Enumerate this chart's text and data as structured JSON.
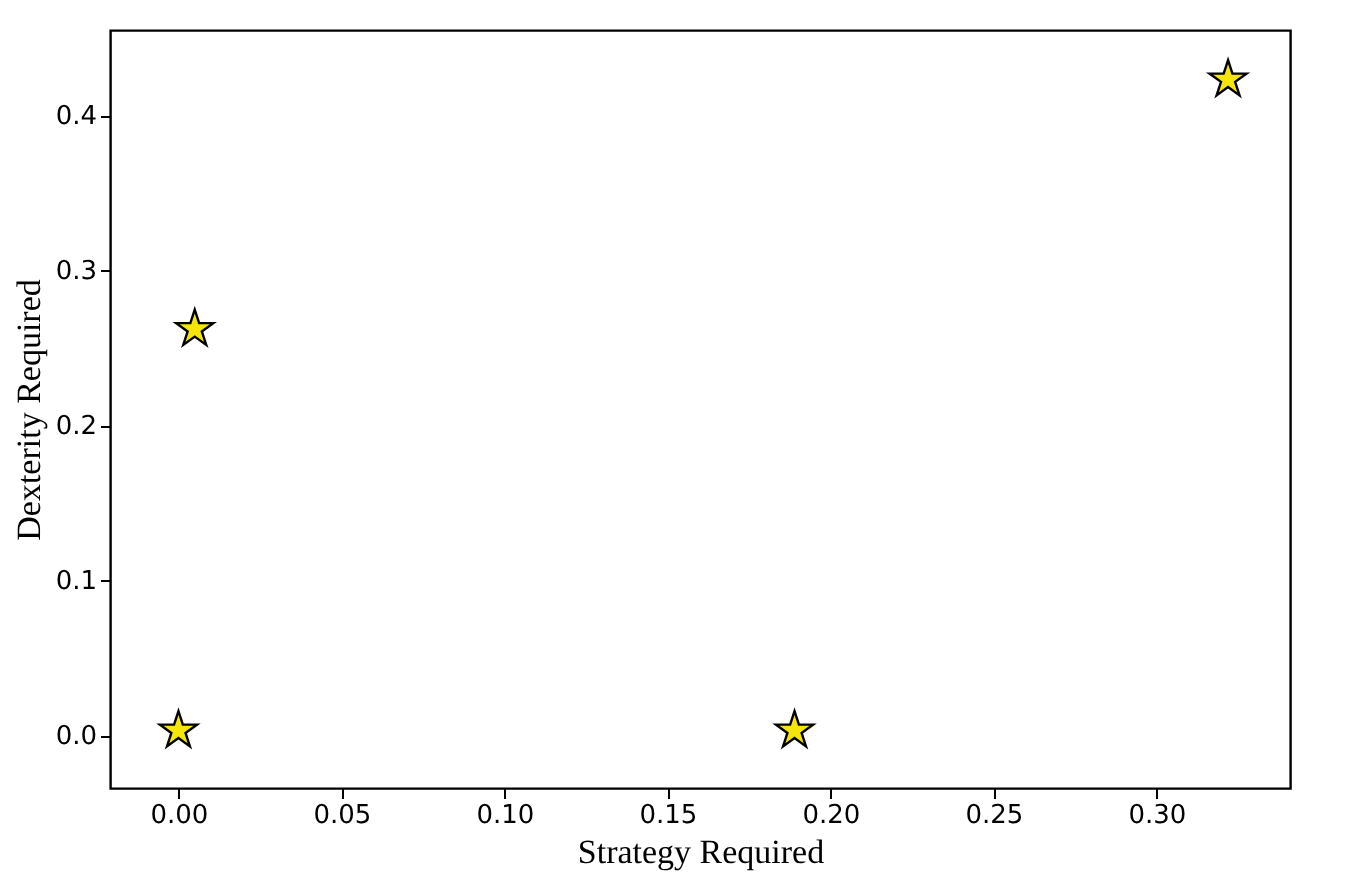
{
  "chart_data": {
    "type": "scatter",
    "xlabel": "Strategy Required",
    "ylabel": "Dexterity Required",
    "x": [
      0.005,
      0.322,
      0.0,
      0.189
    ],
    "series": [
      {
        "color": "#f5e50a",
        "values": [
          0.262,
          0.423,
          0.003,
          0.003
        ]
      }
    ],
    "marker": "star",
    "xlim": [
      -0.021,
      0.341
    ],
    "ylim": [
      -0.034,
      0.455
    ],
    "xticks": [
      {
        "value": 0,
        "label": "0.00"
      },
      0.05,
      {
        "value": 0.1,
        "label": "0.10"
      },
      0.15,
      {
        "value": 0.2,
        "label": "0.20"
      },
      0.25,
      {
        "value": 0.3,
        "label": "0.30"
      }
    ],
    "yticks": [
      {
        "value": 0,
        "label": "0.0"
      },
      0.1,
      0.2,
      0.3,
      0.4
    ],
    "grid": false
  }
}
